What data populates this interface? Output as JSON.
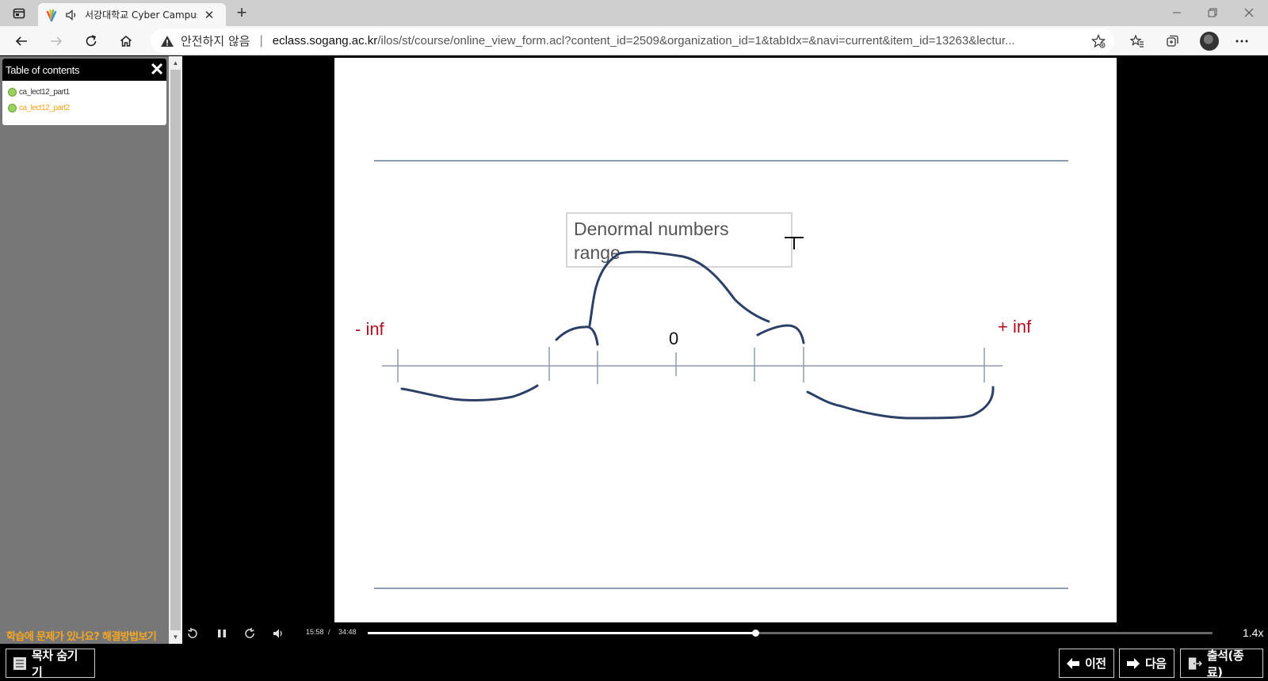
{
  "browser": {
    "tab_title": "서강대학교 Cyber Campus",
    "security_text": "안전하지 않음",
    "url_host": "eclass.sogang.ac.kr",
    "url_path": "/ilos/st/course/online_view_form.acl?content_id=2509&organization_id=1&tabIdx=&navi=current&item_id=13263&lectur..."
  },
  "toc": {
    "header": "Table of contents",
    "close_label": "✕",
    "items": [
      {
        "label": "ca_lect12_part1",
        "current": false
      },
      {
        "label": "ca_lect12_part2",
        "current": true
      }
    ]
  },
  "help_text": "학습에 문제가 있나요? 해결방법보기",
  "slide": {
    "callout_line1": "Denormal numbers",
    "callout_line2": "range",
    "neg_inf": "- inf",
    "pos_inf": "+ inf",
    "zero": "0"
  },
  "player": {
    "time_current": "15:58",
    "time_separator": "/",
    "time_total": "34:48",
    "progress_fraction": 0.459,
    "speed": "1.4x"
  },
  "bottom": {
    "toc_toggle": "목차 숨기기",
    "prev": "이전",
    "next": "다음",
    "attendance": "출석(종료)"
  },
  "colors": {
    "annotation_ink": "#2c3f66",
    "inf_red": "#b01020",
    "toc_current": "#f2a21a",
    "help_orange": "#f5a623"
  }
}
